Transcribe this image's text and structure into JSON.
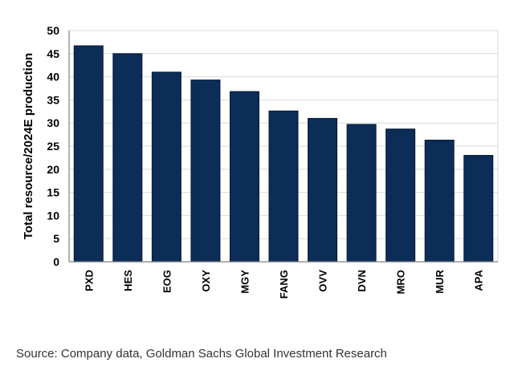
{
  "chart_data": {
    "type": "bar",
    "categories": [
      "PXD",
      "HES",
      "EOG",
      "OXY",
      "MGY",
      "FANG",
      "OVV",
      "DVN",
      "MRO",
      "MUR",
      "APA"
    ],
    "values": [
      46.7,
      45.0,
      41.0,
      39.3,
      36.8,
      32.6,
      31.0,
      29.7,
      28.7,
      26.3,
      23.0
    ],
    "ylabel": "Total resource/2024E production",
    "ylim": [
      0,
      50
    ],
    "yticks": [
      0,
      5,
      10,
      15,
      20,
      25,
      30,
      35,
      40,
      45,
      50
    ],
    "grid": true,
    "bar_color": "#0b2d57"
  },
  "source": "Source: Company data, Goldman Sachs Global Investment Research"
}
